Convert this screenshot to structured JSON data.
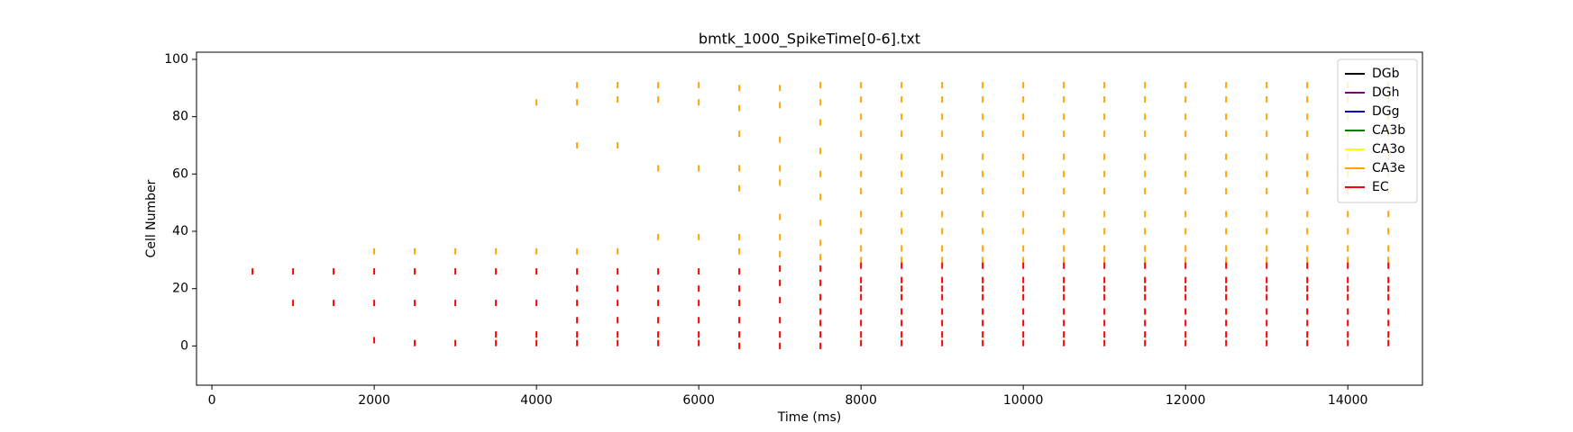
{
  "chart_data": {
    "type": "scatter",
    "title": "bmtk_1000_SpikeTime[0-6].txt",
    "x_label": "Time (ms)",
    "y_label": "Cell Number",
    "xlim": [
      -190,
      14920
    ],
    "ylim": [
      -13.7,
      102.5
    ],
    "xticks": [
      0,
      2000,
      4000,
      6000,
      8000,
      10000,
      12000,
      14000
    ],
    "yticks": [
      0,
      20,
      40,
      60,
      80,
      100
    ],
    "grid": false,
    "legend": "upper right",
    "marker": "|",
    "series": [
      {
        "name": "DGb",
        "color": "#000000",
        "x": [],
        "y": []
      },
      {
        "name": "DGh",
        "color": "#800080",
        "x": [],
        "y": []
      },
      {
        "name": "DGg",
        "color": "#0000cd",
        "x": [],
        "y": []
      },
      {
        "name": "CA3b",
        "color": "#008000",
        "x": [],
        "y": []
      },
      {
        "name": "CA3o",
        "color": "#ffff00",
        "x": [],
        "y": []
      },
      {
        "name": "CA3e",
        "color": "#ffa500",
        "x": [
          2000,
          2500,
          3000,
          3500,
          4000,
          4000,
          4500,
          4500,
          4500,
          4500,
          5000,
          5000,
          5000,
          5000,
          5500,
          5500,
          5500,
          5500,
          6000,
          6000,
          6000,
          6000,
          6500,
          6500,
          6500,
          6500,
          6500,
          6500,
          6500,
          7000,
          7000,
          7000,
          7000,
          7000,
          7000,
          7000,
          7000,
          7500,
          7500,
          7500,
          7500,
          7500,
          7500,
          7500,
          7500,
          7500,
          8000,
          8000,
          8000,
          8000,
          8000,
          8000,
          8000,
          8000,
          8000,
          8000,
          8000,
          8500,
          8500,
          8500,
          8500,
          8500,
          8500,
          8500,
          8500,
          8500,
          8500,
          8500,
          9000,
          9000,
          9000,
          9000,
          9000,
          9000,
          9000,
          9000,
          9000,
          9000,
          9000,
          9500,
          9500,
          9500,
          9500,
          9500,
          9500,
          9500,
          9500,
          9500,
          9500,
          9500,
          10000,
          10000,
          10000,
          10000,
          10000,
          10000,
          10000,
          10000,
          10000,
          10000,
          10000,
          10500,
          10500,
          10500,
          10500,
          10500,
          10500,
          10500,
          10500,
          10500,
          10500,
          10500,
          11000,
          11000,
          11000,
          11000,
          11000,
          11000,
          11000,
          11000,
          11000,
          11000,
          11000,
          11500,
          11500,
          11500,
          11500,
          11500,
          11500,
          11500,
          11500,
          11500,
          11500,
          11500,
          12000,
          12000,
          12000,
          12000,
          12000,
          12000,
          12000,
          12000,
          12000,
          12000,
          12000,
          12500,
          12500,
          12500,
          12500,
          12500,
          12500,
          12500,
          12500,
          12500,
          12500,
          12500,
          13000,
          13000,
          13000,
          13000,
          13000,
          13000,
          13000,
          13000,
          13000,
          13000,
          13000,
          13500,
          13500,
          13500,
          13500,
          13500,
          13500,
          13500,
          13500,
          13500,
          13500,
          13500,
          14000,
          14000,
          14000,
          14000,
          14000,
          14000,
          14000,
          14000,
          14000,
          14000,
          14000,
          14500,
          14500,
          14500,
          14500,
          14500,
          14500,
          14500,
          14500,
          14500,
          14500,
          14500
        ],
        "y": [
          33,
          33,
          33,
          33,
          85,
          33,
          91,
          85,
          70,
          33,
          91,
          86,
          70,
          33,
          91,
          86,
          62,
          38,
          91,
          85,
          62,
          38,
          90,
          83,
          74,
          62,
          55,
          38,
          33,
          90,
          84,
          72,
          62,
          57,
          45,
          38,
          32,
          91,
          85,
          78,
          68,
          60,
          52,
          43,
          36,
          31,
          91,
          86,
          80,
          74,
          66,
          60,
          54,
          46,
          40,
          34,
          30,
          91,
          86,
          80,
          74,
          66,
          60,
          54,
          46,
          40,
          34,
          30,
          91,
          86,
          80,
          74,
          66,
          60,
          54,
          46,
          40,
          34,
          30,
          91,
          86,
          80,
          74,
          66,
          60,
          54,
          46,
          40,
          34,
          30,
          91,
          86,
          80,
          74,
          66,
          60,
          54,
          46,
          40,
          34,
          30,
          91,
          86,
          80,
          74,
          66,
          60,
          54,
          46,
          40,
          34,
          30,
          91,
          86,
          80,
          74,
          66,
          60,
          54,
          46,
          40,
          34,
          30,
          91,
          86,
          80,
          74,
          66,
          60,
          54,
          46,
          40,
          34,
          30,
          91,
          86,
          80,
          74,
          66,
          60,
          54,
          46,
          40,
          34,
          30,
          91,
          86,
          80,
          74,
          66,
          60,
          54,
          46,
          40,
          34,
          30,
          91,
          86,
          80,
          74,
          66,
          60,
          54,
          46,
          40,
          34,
          30,
          91,
          86,
          80,
          74,
          66,
          60,
          54,
          46,
          40,
          34,
          30,
          91,
          86,
          80,
          74,
          66,
          60,
          54,
          46,
          40,
          34,
          30,
          91,
          86,
          80,
          74,
          66,
          60,
          54,
          46,
          40,
          34,
          30
        ]
      },
      {
        "name": "EC",
        "color": "#ff0000",
        "x": [
          500,
          1000,
          1000,
          1500,
          1500,
          2000,
          2000,
          2000,
          2500,
          2500,
          2500,
          3000,
          3000,
          3000,
          3500,
          3500,
          3500,
          3500,
          4000,
          4000,
          4000,
          4000,
          4500,
          4500,
          4500,
          4500,
          4500,
          4500,
          5000,
          5000,
          5000,
          5000,
          5000,
          5000,
          5500,
          5500,
          5500,
          5500,
          5500,
          5500,
          6000,
          6000,
          6000,
          6000,
          6000,
          6000,
          6500,
          6500,
          6500,
          6500,
          6500,
          6500,
          7000,
          7000,
          7000,
          7000,
          7000,
          7000,
          7500,
          7500,
          7500,
          7500,
          7500,
          7500,
          7500,
          8000,
          8000,
          8000,
          8000,
          8000,
          8000,
          8000,
          8000,
          8500,
          8500,
          8500,
          8500,
          8500,
          8500,
          8500,
          8500,
          9000,
          9000,
          9000,
          9000,
          9000,
          9000,
          9000,
          9000,
          9500,
          9500,
          9500,
          9500,
          9500,
          9500,
          9500,
          9500,
          10000,
          10000,
          10000,
          10000,
          10000,
          10000,
          10000,
          10000,
          10500,
          10500,
          10500,
          10500,
          10500,
          10500,
          10500,
          10500,
          11000,
          11000,
          11000,
          11000,
          11000,
          11000,
          11000,
          11000,
          11500,
          11500,
          11500,
          11500,
          11500,
          11500,
          11500,
          11500,
          12000,
          12000,
          12000,
          12000,
          12000,
          12000,
          12000,
          12000,
          12500,
          12500,
          12500,
          12500,
          12500,
          12500,
          12500,
          12500,
          13000,
          13000,
          13000,
          13000,
          13000,
          13000,
          13000,
          13000,
          13500,
          13500,
          13500,
          13500,
          13500,
          13500,
          13500,
          13500,
          14000,
          14000,
          14000,
          14000,
          14000,
          14000,
          14000,
          14000,
          14500,
          14500,
          14500,
          14500,
          14500,
          14500,
          14500,
          14500
        ],
        "y": [
          26,
          26,
          15,
          26,
          15,
          26,
          15,
          2,
          26,
          15,
          1,
          26,
          15,
          1,
          26,
          15,
          4,
          1,
          26,
          15,
          4,
          1,
          26,
          20,
          15,
          9,
          4,
          1,
          26,
          20,
          15,
          9,
          4,
          1,
          26,
          20,
          15,
          9,
          4,
          1,
          26,
          20,
          15,
          9,
          4,
          1,
          26,
          20,
          15,
          9,
          4,
          0,
          27,
          22,
          16,
          9,
          4,
          0,
          27,
          22,
          17,
          12,
          8,
          4,
          0,
          28,
          23,
          20,
          17,
          12,
          8,
          4,
          1,
          28,
          23,
          20,
          17,
          12,
          8,
          4,
          1,
          28,
          23,
          20,
          17,
          12,
          8,
          4,
          1,
          28,
          23,
          20,
          17,
          12,
          8,
          4,
          1,
          28,
          23,
          20,
          17,
          12,
          8,
          4,
          1,
          28,
          23,
          20,
          17,
          12,
          8,
          4,
          1,
          28,
          23,
          20,
          17,
          12,
          8,
          4,
          1,
          28,
          23,
          20,
          17,
          12,
          8,
          4,
          1,
          28,
          23,
          20,
          17,
          12,
          8,
          4,
          1,
          28,
          23,
          20,
          17,
          12,
          8,
          4,
          1,
          28,
          23,
          20,
          17,
          12,
          8,
          4,
          1,
          28,
          23,
          20,
          17,
          12,
          8,
          4,
          1,
          28,
          23,
          20,
          17,
          12,
          8,
          4,
          1,
          28,
          23,
          20,
          17,
          12,
          8,
          4,
          1
        ]
      }
    ]
  }
}
